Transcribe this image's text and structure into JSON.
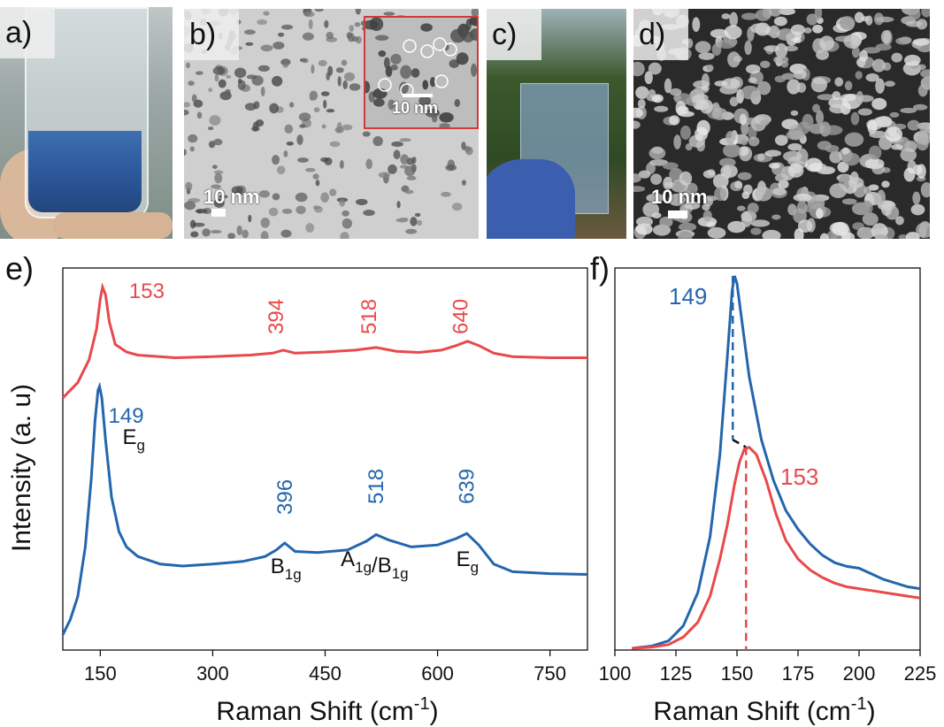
{
  "panels": {
    "a": {
      "label": "a)"
    },
    "b": {
      "label": "b)",
      "scale_main": "10 nm",
      "scale_inset": "10 nm"
    },
    "c": {
      "label": "c)"
    },
    "d": {
      "label": "d)",
      "scale_main": "10 nm"
    }
  },
  "colors": {
    "red": "#e8494b",
    "blue": "#2466ad",
    "peak_label_black": "#111111"
  },
  "chart_data": [
    {
      "type": "line",
      "panel_label": "e)",
      "xlabel": "Raman Shift (cm",
      "xlabel_sup": "-1",
      "xlabel_end": ")",
      "ylabel": "Intensity (a. u)",
      "xlim": [
        100,
        800
      ],
      "xticks": [
        "150",
        "300",
        "450",
        "600",
        "750"
      ],
      "tick_values": [
        150,
        300,
        450,
        600,
        750
      ],
      "series": [
        {
          "color": "#e8494b",
          "points": [
            [
              100,
              0.66
            ],
            [
              120,
              0.7
            ],
            [
              135,
              0.76
            ],
            [
              145,
              0.84
            ],
            [
              150,
              0.92
            ],
            [
              153,
              0.95
            ],
            [
              157,
              0.93
            ],
            [
              162,
              0.86
            ],
            [
              170,
              0.8
            ],
            [
              185,
              0.78
            ],
            [
              200,
              0.772
            ],
            [
              250,
              0.765
            ],
            [
              300,
              0.768
            ],
            [
              350,
              0.772
            ],
            [
              380,
              0.777
            ],
            [
              394,
              0.785
            ],
            [
              410,
              0.777
            ],
            [
              450,
              0.78
            ],
            [
              490,
              0.785
            ],
            [
              518,
              0.792
            ],
            [
              545,
              0.782
            ],
            [
              575,
              0.779
            ],
            [
              605,
              0.785
            ],
            [
              625,
              0.797
            ],
            [
              640,
              0.808
            ],
            [
              655,
              0.797
            ],
            [
              675,
              0.777
            ],
            [
              700,
              0.768
            ],
            [
              750,
              0.765
            ],
            [
              800,
              0.765
            ]
          ]
        },
        {
          "color": "#2466ad",
          "points": [
            [
              100,
              0.04
            ],
            [
              110,
              0.08
            ],
            [
              120,
              0.14
            ],
            [
              130,
              0.27
            ],
            [
              138,
              0.45
            ],
            [
              143,
              0.6
            ],
            [
              147,
              0.68
            ],
            [
              149,
              0.69
            ],
            [
              152,
              0.66
            ],
            [
              157,
              0.55
            ],
            [
              165,
              0.4
            ],
            [
              175,
              0.31
            ],
            [
              185,
              0.27
            ],
            [
              200,
              0.245
            ],
            [
              230,
              0.225
            ],
            [
              260,
              0.22
            ],
            [
              300,
              0.225
            ],
            [
              340,
              0.232
            ],
            [
              370,
              0.245
            ],
            [
              385,
              0.262
            ],
            [
              396,
              0.28
            ],
            [
              410,
              0.258
            ],
            [
              440,
              0.255
            ],
            [
              480,
              0.262
            ],
            [
              505,
              0.285
            ],
            [
              518,
              0.302
            ],
            [
              535,
              0.288
            ],
            [
              565,
              0.27
            ],
            [
              600,
              0.275
            ],
            [
              625,
              0.292
            ],
            [
              639,
              0.305
            ],
            [
              655,
              0.275
            ],
            [
              675,
              0.225
            ],
            [
              700,
              0.205
            ],
            [
              750,
              0.2
            ],
            [
              800,
              0.198
            ]
          ]
        }
      ],
      "peak_labels": [
        {
          "text": "153",
          "x": 153,
          "color": "#e8494b",
          "rotated": false
        },
        {
          "text": "394",
          "x": 394,
          "color": "#e8494b",
          "rotated": true
        },
        {
          "text": "518",
          "x": 518,
          "color": "#e8494b",
          "rotated": true
        },
        {
          "text": "640",
          "x": 640,
          "color": "#e8494b",
          "rotated": true
        },
        {
          "text": "149",
          "x": 149,
          "color": "#2466ad",
          "rotated": false
        },
        {
          "text": "396",
          "x": 396,
          "color": "#2466ad",
          "rotated": true
        },
        {
          "text": "518",
          "x": 518,
          "color": "#2466ad",
          "rotated": true
        },
        {
          "text": "639",
          "x": 639,
          "color": "#2466ad",
          "rotated": true
        }
      ],
      "mode_labels": [
        {
          "parts": [
            [
              "E",
              ""
            ],
            [
              "g",
              "sub"
            ]
          ],
          "x": 149
        },
        {
          "parts": [
            [
              "B",
              ""
            ],
            [
              "1g",
              "sub"
            ]
          ],
          "x": 396
        },
        {
          "parts": [
            [
              "A",
              ""
            ],
            [
              "1g",
              "sub"
            ],
            [
              "/B",
              ""
            ],
            [
              "1g",
              "sub"
            ]
          ],
          "x": 518
        },
        {
          "parts": [
            [
              "E",
              ""
            ],
            [
              "g",
              "sub"
            ]
          ],
          "x": 639
        }
      ]
    },
    {
      "type": "line",
      "panel_label": "f)",
      "xlabel": "Raman Shift (cm",
      "xlabel_sup": "-1",
      "xlabel_end": ")",
      "xlim": [
        100,
        225
      ],
      "xticks": [
        "100",
        "125",
        "150",
        "175",
        "200",
        "225"
      ],
      "tick_values": [
        100,
        125,
        150,
        175,
        200,
        225
      ],
      "series": [
        {
          "color": "#2466ad",
          "points": [
            [
              107,
              0.0
            ],
            [
              115,
              0.006
            ],
            [
              122,
              0.02
            ],
            [
              128,
              0.06
            ],
            [
              134,
              0.15
            ],
            [
              139,
              0.3
            ],
            [
              143,
              0.52
            ],
            [
              146,
              0.78
            ],
            [
              148,
              0.96
            ],
            [
              149,
              1.0
            ],
            [
              150,
              0.98
            ],
            [
              152,
              0.88
            ],
            [
              155,
              0.73
            ],
            [
              160,
              0.56
            ],
            [
              165,
              0.45
            ],
            [
              170,
              0.37
            ],
            [
              175,
              0.32
            ],
            [
              180,
              0.28
            ],
            [
              185,
              0.25
            ],
            [
              190,
              0.23
            ],
            [
              195,
              0.22
            ],
            [
              200,
              0.215
            ],
            [
              205,
              0.2
            ],
            [
              210,
              0.185
            ],
            [
              215,
              0.175
            ],
            [
              220,
              0.165
            ],
            [
              225,
              0.16
            ]
          ]
        },
        {
          "color": "#e8494b",
          "points": [
            [
              107,
              0.0
            ],
            [
              115,
              0.003
            ],
            [
              122,
              0.01
            ],
            [
              128,
              0.03
            ],
            [
              134,
              0.07
            ],
            [
              139,
              0.14
            ],
            [
              143,
              0.24
            ],
            [
              146,
              0.33
            ],
            [
              149,
              0.44
            ],
            [
              151,
              0.5
            ],
            [
              153,
              0.535
            ],
            [
              155,
              0.54
            ],
            [
              158,
              0.52
            ],
            [
              162,
              0.45
            ],
            [
              166,
              0.36
            ],
            [
              170,
              0.29
            ],
            [
              175,
              0.24
            ],
            [
              180,
              0.21
            ],
            [
              185,
              0.19
            ],
            [
              190,
              0.175
            ],
            [
              195,
              0.165
            ],
            [
              200,
              0.16
            ],
            [
              205,
              0.155
            ],
            [
              210,
              0.15
            ],
            [
              215,
              0.145
            ],
            [
              220,
              0.14
            ],
            [
              225,
              0.135
            ]
          ]
        }
      ],
      "peak_labels": [
        {
          "text": "149",
          "x": 149,
          "color": "#2466ad",
          "rotated": false
        },
        {
          "text": "153",
          "x": 153,
          "color": "#e8494b",
          "rotated": false
        }
      ]
    }
  ]
}
